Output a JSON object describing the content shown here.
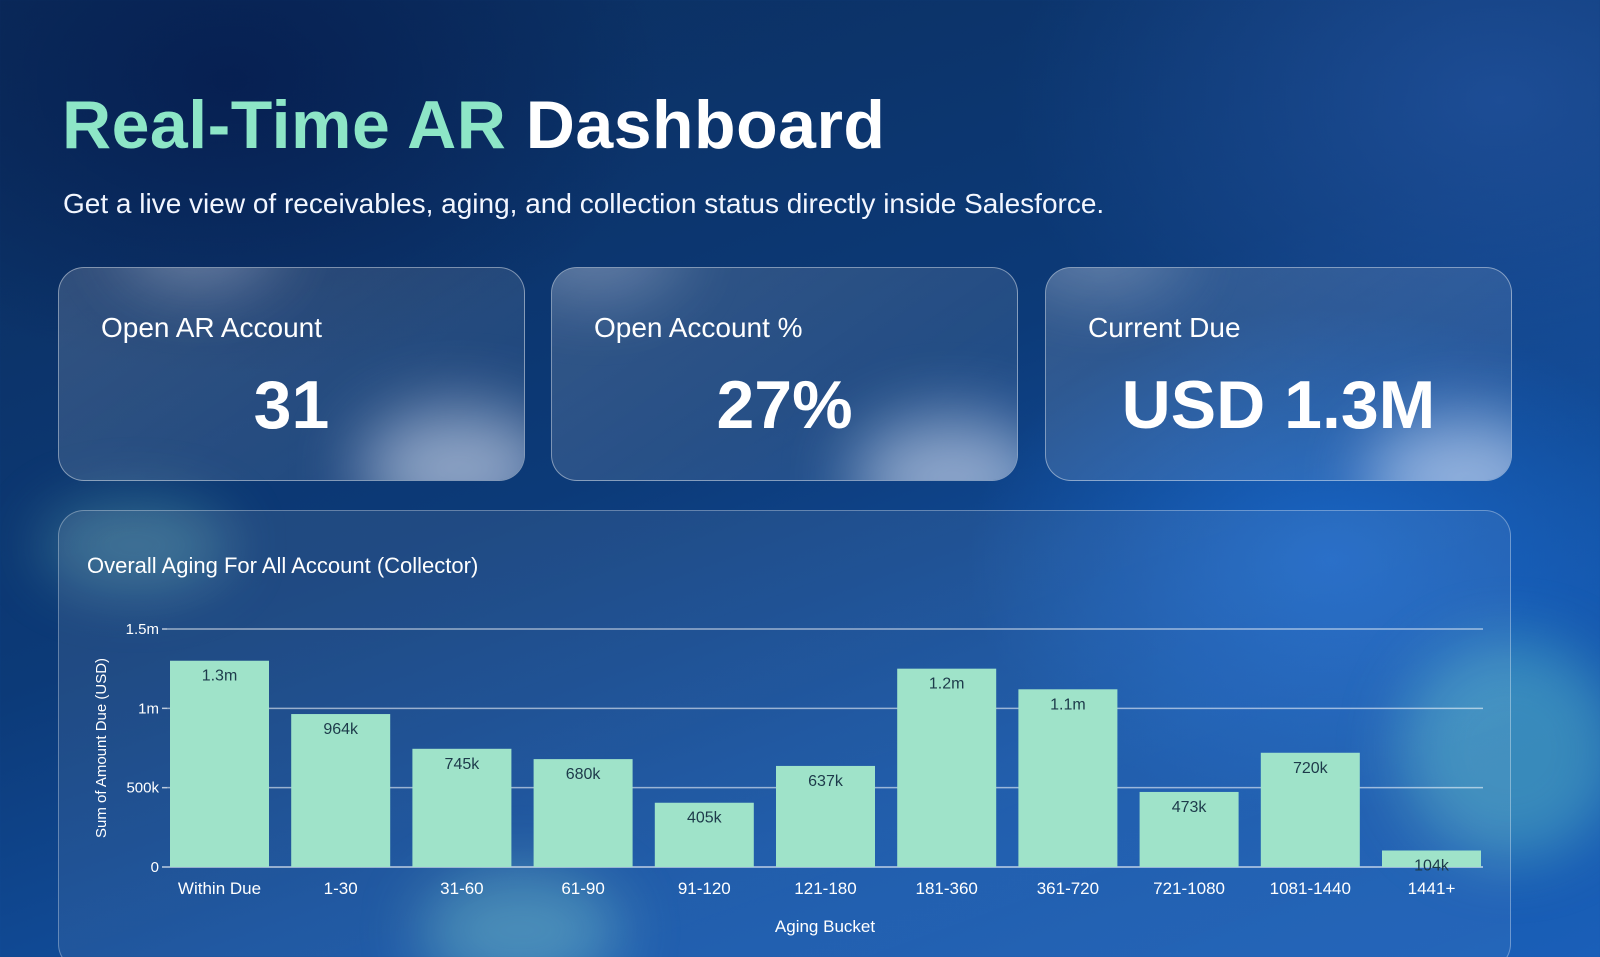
{
  "header": {
    "title_accent": "Real-Time AR",
    "title_main": "Dashboard",
    "subtitle": "Get a live view of receivables, aging, and collection status directly inside Salesforce."
  },
  "cards": [
    {
      "label": "Open AR Account",
      "value": "31"
    },
    {
      "label": "Open Account %",
      "value": "27%"
    },
    {
      "label": "Current Due",
      "value": "USD 1.3M"
    }
  ],
  "colors": {
    "accent": "#8de6c7",
    "bar": "#9fe3c9",
    "background": "#0c3a78"
  },
  "chart_data": {
    "type": "bar",
    "title": "Overall Aging For All Account (Collector)",
    "xlabel": "Aging Bucket",
    "ylabel": "Sum of Amount Due (USD)",
    "categories": [
      "Within Due",
      "1-30",
      "31-60",
      "61-90",
      "91-120",
      "121-180",
      "181-360",
      "361-720",
      "721-1080",
      "1081-1440",
      "1441+"
    ],
    "values": [
      1300000,
      964000,
      745000,
      680000,
      405000,
      637000,
      1250000,
      1120000,
      473000,
      720000,
      104000
    ],
    "data_labels": [
      "1.3m",
      "964k",
      "745k",
      "680k",
      "405k",
      "637k",
      "1.2m",
      "1.1m",
      "473k",
      "720k",
      "104k"
    ],
    "yticks": [
      0,
      500000,
      1000000,
      1500000
    ],
    "ytick_labels": [
      "0",
      "500k",
      "1m",
      "1.5m"
    ],
    "ylim": [
      0,
      1500000
    ],
    "grid": true,
    "legend": "none"
  }
}
